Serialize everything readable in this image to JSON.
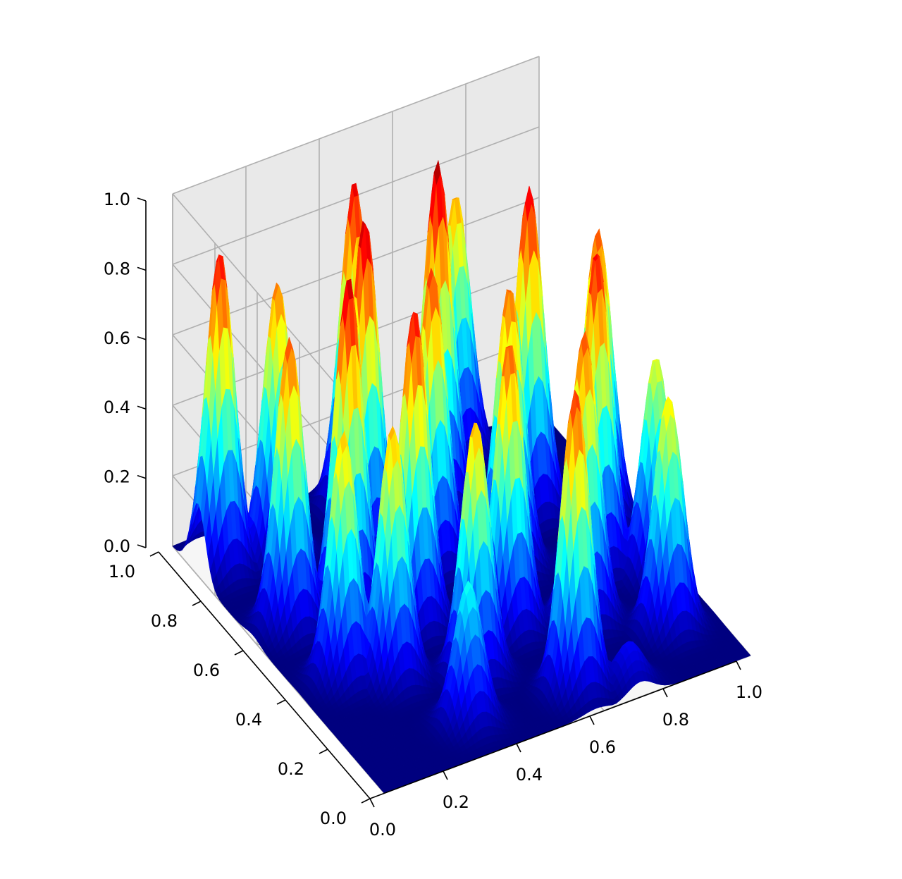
{
  "chart_data": {
    "type": "surface3d",
    "colormap": "jet",
    "colormap_stops": [
      "#00007f",
      "#0000ff",
      "#007fff",
      "#00ffff",
      "#7fff7f",
      "#ffff00",
      "#ff7f00",
      "#ff0000",
      "#7f0000"
    ],
    "pane_color": "#f2f2f2",
    "grid": true,
    "xlim": [
      0,
      1
    ],
    "ylim": [
      0,
      1
    ],
    "zlim": [
      0,
      1
    ],
    "x_ticks": [
      "0.0",
      "0.2",
      "0.4",
      "0.6",
      "0.8",
      "1.0"
    ],
    "y_ticks": [
      "0.0",
      "0.2",
      "0.4",
      "0.6",
      "0.8",
      "1.0"
    ],
    "z_ticks": [
      "0.0",
      "0.2",
      "0.4",
      "0.6",
      "0.8",
      "1.0"
    ],
    "xlabel": "",
    "ylabel": "",
    "zlabel": "",
    "title": "",
    "peaks": [
      {
        "x": 0.06,
        "y": 0.88,
        "z": 0.9
      },
      {
        "x": 0.1,
        "y": 0.62,
        "z": 0.82
      },
      {
        "x": 0.2,
        "y": 0.85,
        "z": 0.78
      },
      {
        "x": 0.25,
        "y": 0.6,
        "z": 0.95
      },
      {
        "x": 0.12,
        "y": 0.4,
        "z": 0.7
      },
      {
        "x": 0.22,
        "y": 0.34,
        "z": 0.72
      },
      {
        "x": 0.3,
        "y": 0.12,
        "z": 0.4
      },
      {
        "x": 0.38,
        "y": 0.75,
        "z": 0.96
      },
      {
        "x": 0.36,
        "y": 0.48,
        "z": 0.9
      },
      {
        "x": 0.4,
        "y": 0.26,
        "z": 0.72
      },
      {
        "x": 0.45,
        "y": 0.92,
        "z": 0.92
      },
      {
        "x": 0.5,
        "y": 0.64,
        "z": 0.85
      },
      {
        "x": 0.55,
        "y": 0.36,
        "z": 0.82
      },
      {
        "x": 0.58,
        "y": 0.1,
        "z": 0.85
      },
      {
        "x": 0.62,
        "y": 0.82,
        "z": 0.98
      },
      {
        "x": 0.66,
        "y": 0.55,
        "z": 0.8
      },
      {
        "x": 0.72,
        "y": 0.3,
        "z": 0.82
      },
      {
        "x": 0.75,
        "y": 0.96,
        "z": 0.74
      },
      {
        "x": 0.8,
        "y": 0.7,
        "z": 0.92
      },
      {
        "x": 0.84,
        "y": 0.45,
        "z": 0.9
      },
      {
        "x": 0.88,
        "y": 0.18,
        "z": 0.66
      },
      {
        "x": 0.93,
        "y": 0.6,
        "z": 0.82
      },
      {
        "x": 0.95,
        "y": 0.36,
        "z": 0.62
      },
      {
        "x": 0.7,
        "y": 0.05,
        "z": 0.12
      }
    ],
    "peak_width": 0.035
  }
}
